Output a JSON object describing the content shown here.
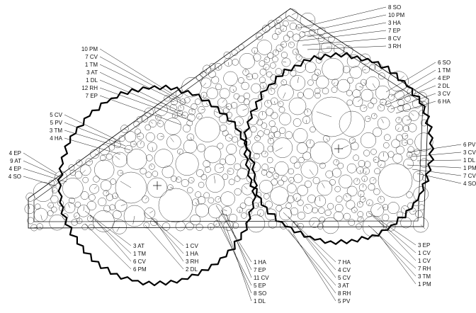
{
  "colors": {
    "ink": "#111111",
    "background": "#ffffff",
    "fill_circle": "#ffffff"
  },
  "labels": {
    "top": [
      "8 SO",
      "10 PM",
      "3 HA",
      "7 EP",
      "8 CV",
      "3 RH"
    ],
    "right_upper": [
      "6 SO",
      "1 TM",
      "4 EP",
      "2 DL",
      "3 CV",
      "6 HA"
    ],
    "right_lower": [
      "6 PV",
      "3 CV",
      "1 DL",
      "1 PM",
      "7 CV",
      "4 SO"
    ],
    "upper_left": [
      "10 PM",
      "7 CV",
      "1 TM",
      "3 AT",
      "1 DL",
      "12 RH",
      "7 EP"
    ],
    "mid_left": [
      "5 CV",
      "5 PV",
      "3 TM",
      "4 HA"
    ],
    "left": [
      "4 EP",
      "9 AT",
      "4 EP",
      "4 SO"
    ],
    "bottom_1": [
      "3 AT",
      "1 TM",
      "6 CV",
      "6 PM"
    ],
    "bottom_2": [
      "1 CV",
      "1 HA",
      "3 RH",
      "2 DL"
    ],
    "bottom_3": [
      "1 HA",
      "7 EP",
      "11 CV",
      "5 EP",
      "8 SO",
      "1 DL"
    ],
    "bottom_4": [
      "7 HA",
      "4 CV",
      "5 CV",
      "3 AT",
      "8 RH",
      "5 PV"
    ],
    "bottom_5": [
      "3 EP",
      "1 CV",
      "1 CV",
      "7 RH",
      "3 TM",
      "1 PM"
    ]
  }
}
